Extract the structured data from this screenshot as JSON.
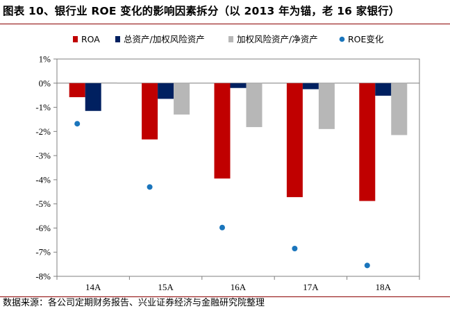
{
  "title": "图表 10、银行业 ROE 变化的影响因素拆分（以 2013 年为锚，老 16 家银行）",
  "source": "数据来源：各公司定期财务报告、兴业证券经济与金融研究院整理",
  "chart_data": {
    "type": "bar",
    "categories": [
      "14A",
      "15A",
      "16A",
      "17A",
      "18A"
    ],
    "ylim": [
      -8,
      1
    ],
    "yticks": [
      1,
      0,
      -1,
      -2,
      -3,
      -4,
      -5,
      -6,
      -7,
      -8
    ],
    "ytick_labels": [
      "1%",
      "0%",
      "-1%",
      "-2%",
      "-3%",
      "-4%",
      "-5%",
      "-6%",
      "-7%",
      "-8%"
    ],
    "unit": "%",
    "legend_position": "top",
    "series": [
      {
        "name": "ROA",
        "kind": "bar",
        "color": "#c00000",
        "values": [
          -0.58,
          -2.33,
          -3.95,
          -4.72,
          -4.88
        ]
      },
      {
        "name": "总资产/加权风险资产",
        "kind": "bar",
        "color": "#002060",
        "values": [
          -1.15,
          -0.65,
          -0.2,
          -0.25,
          -0.52
        ]
      },
      {
        "name": "加权风险资产/净资产",
        "kind": "bar",
        "color": "#b7b7b7",
        "values": [
          0.03,
          -1.3,
          -1.82,
          -1.9,
          -2.15
        ]
      },
      {
        "name": "ROE变化",
        "kind": "scatter",
        "color": "#1a75bc",
        "values": [
          -1.68,
          -4.3,
          -5.98,
          -6.85,
          -7.55
        ]
      }
    ]
  }
}
